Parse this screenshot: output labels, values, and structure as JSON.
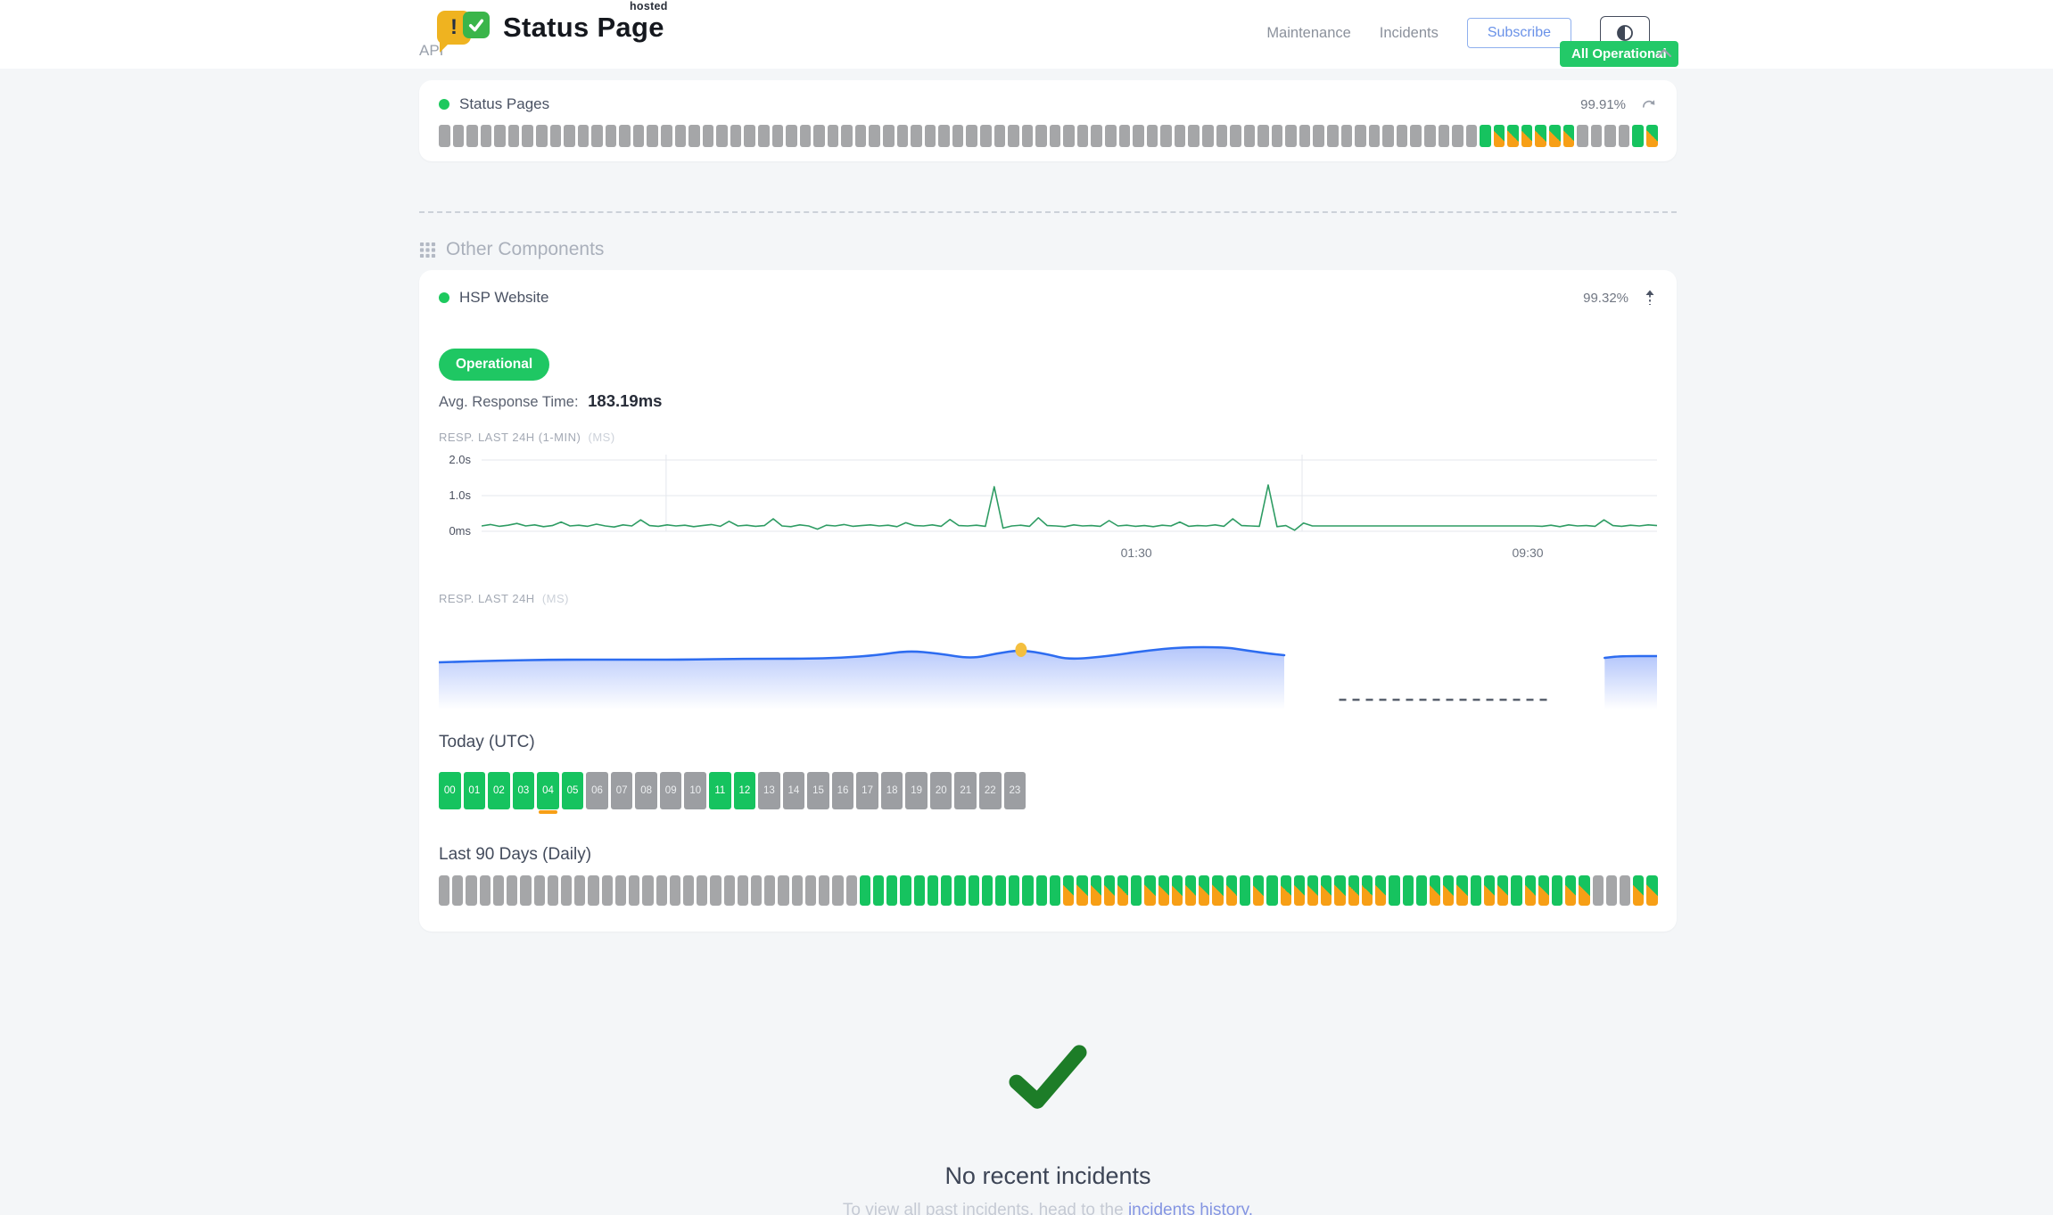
{
  "header": {
    "brand": {
      "title": "Status Page",
      "superscript": "hosted",
      "bubble_exclamation": "!"
    },
    "nav": [
      {
        "label": "Maintenance"
      },
      {
        "label": "Incidents"
      }
    ],
    "subscribe_label": "Subscribe",
    "overall_status": "All Operational"
  },
  "api_section": {
    "title": "API",
    "component": {
      "name": "Status Pages",
      "uptime": "99.91%"
    },
    "bars": "gggggggggggggggggggggggggggggggggggggggggggggggggggggggggggggggggggggggggggGMMMMMMggggGM"
  },
  "other_components": {
    "title": "Other Components",
    "component": {
      "name": "HSP Website",
      "uptime": "99.32%"
    },
    "status_badge": "Operational",
    "avg_response": {
      "label": "Avg. Response Time:",
      "value": "183.19ms"
    },
    "today": {
      "title": "Today (UTC)",
      "hours": [
        {
          "label": "00",
          "status": "up"
        },
        {
          "label": "01",
          "status": "up"
        },
        {
          "label": "02",
          "status": "up"
        },
        {
          "label": "03",
          "status": "up"
        },
        {
          "label": "04",
          "status": "up",
          "partial": true
        },
        {
          "label": "05",
          "status": "up"
        },
        {
          "label": "06",
          "status": "nodata"
        },
        {
          "label": "07",
          "status": "nodata"
        },
        {
          "label": "08",
          "status": "nodata"
        },
        {
          "label": "09",
          "status": "nodata"
        },
        {
          "label": "10",
          "status": "nodata"
        },
        {
          "label": "11",
          "status": "up"
        },
        {
          "label": "12",
          "status": "up"
        },
        {
          "label": "13",
          "status": "nodata"
        },
        {
          "label": "14",
          "status": "nodata"
        },
        {
          "label": "15",
          "status": "nodata"
        },
        {
          "label": "16",
          "status": "nodata"
        },
        {
          "label": "17",
          "status": "nodata"
        },
        {
          "label": "18",
          "status": "nodata"
        },
        {
          "label": "19",
          "status": "nodata"
        },
        {
          "label": "20",
          "status": "nodata"
        },
        {
          "label": "21",
          "status": "nodata"
        },
        {
          "label": "22",
          "status": "nodata"
        },
        {
          "label": "23",
          "status": "nodata"
        }
      ]
    },
    "last90": {
      "title": "Last 90 Days (Daily)",
      "bars": "gggggggggggggggggggggggggggggggGGGGGGGGGGGGGGGMMMMMGMMMMMMMGMGMMMMMMMMGGGMMMGMMGMMGMMgggMM"
    }
  },
  "incidents": {
    "heading": "No recent incidents",
    "note_prefix": "To view all past incidents, head to the ",
    "link_label": "incidents history",
    "note_suffix": "."
  },
  "colors": {
    "green": "#16c35f",
    "orange": "#f79f16",
    "gray_bar": "#a5a6a8",
    "chart_green": "#2e9c63",
    "chart_blue": "#2d6cf0",
    "marker_yellow": "#f4bf3f",
    "check_green": "#1d7d28",
    "link_blue": "#8495e2"
  },
  "chart_data": [
    {
      "name": "RESP. LAST 24H (1-MIN)",
      "unit": "(MS)",
      "type": "line",
      "ylim_ms": [
        0,
        2000
      ],
      "yticks": [
        "2.0s",
        "1.0s",
        "0ms"
      ],
      "xticks": [
        {
          "label": "01:30",
          "pos": 0.557
        },
        {
          "label": "09:30",
          "pos": 0.89
        }
      ],
      "gridlines_x_pos": [
        0.157,
        0.698
      ],
      "values_ms": [
        150,
        190,
        140,
        170,
        220,
        150,
        180,
        130,
        160,
        260,
        150,
        170,
        140,
        200,
        150,
        120,
        180,
        150,
        320,
        160,
        140,
        180,
        150,
        170,
        130,
        160,
        190,
        140,
        280,
        150,
        170,
        140,
        160,
        350,
        150,
        130,
        180,
        150,
        60,
        170,
        150,
        190,
        140,
        160,
        180,
        150,
        170,
        130,
        240,
        160,
        150,
        180,
        140,
        330,
        160,
        150,
        170,
        140,
        1250,
        90,
        150,
        170,
        140,
        380,
        160,
        150,
        130,
        180,
        150,
        160,
        140,
        300,
        150,
        170,
        140,
        160,
        130,
        170,
        150,
        260,
        140,
        160,
        150,
        180,
        140,
        350,
        160,
        150,
        140,
        1300,
        130,
        160,
        30,
        230,
        150,
        150,
        150,
        150,
        150,
        150,
        150,
        150,
        150,
        150,
        150,
        150,
        150,
        150,
        150,
        150,
        150,
        150,
        150,
        150,
        150,
        150,
        150,
        150,
        150,
        150,
        140,
        170,
        130,
        180,
        150,
        160,
        140,
        320,
        160,
        140,
        170,
        150,
        180,
        160
      ]
    },
    {
      "name": "RESP. LAST 24H",
      "unit": "(MS)",
      "type": "area",
      "note": "no axis scale shown; points are [x-fraction, px-from-chart-top], chart height 95px",
      "segments": [
        {
          "points": [
            [
              0,
              42
            ],
            [
              0.05,
              40
            ],
            [
              0.1,
              39
            ],
            [
              0.15,
              39
            ],
            [
              0.2,
              39
            ],
            [
              0.25,
              38
            ],
            [
              0.3,
              38
            ],
            [
              0.33,
              37
            ],
            [
              0.36,
              34
            ],
            [
              0.385,
              29
            ],
            [
              0.41,
              32
            ],
            [
              0.437,
              38
            ],
            [
              0.458,
              32
            ],
            [
              0.478,
              28
            ],
            [
              0.5,
              33
            ],
            [
              0.517,
              39
            ],
            [
              0.55,
              35
            ],
            [
              0.58,
              29
            ],
            [
              0.61,
              25
            ],
            [
              0.645,
              25
            ],
            [
              0.66,
              28
            ],
            [
              0.68,
              32
            ],
            [
              0.694,
              34
            ]
          ]
        },
        {
          "points": [
            [
              0.957,
              37
            ],
            [
              0.97,
              35
            ],
            [
              1,
              35
            ]
          ]
        }
      ],
      "gap_dashed_line": {
        "from": 0.739,
        "to": 0.91,
        "y": 84
      },
      "marker": {
        "pos": 0.478,
        "y": 28
      }
    }
  ]
}
